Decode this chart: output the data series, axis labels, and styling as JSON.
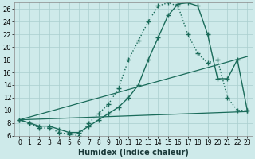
{
  "xlabel": "Humidex (Indice chaleur)",
  "background_color": "#ceeaea",
  "line_color": "#1a6b5a",
  "grid_color": "#aacece",
  "xlim": [
    -0.5,
    23.5
  ],
  "ylim": [
    6,
    27
  ],
  "xticks": [
    0,
    1,
    2,
    3,
    4,
    5,
    6,
    7,
    8,
    9,
    10,
    11,
    12,
    13,
    14,
    15,
    16,
    17,
    18,
    19,
    20,
    21,
    22,
    23
  ],
  "yticks": [
    6,
    8,
    10,
    12,
    14,
    16,
    18,
    20,
    22,
    24,
    26
  ],
  "series": [
    {
      "x": [
        0,
        1,
        2,
        3,
        4,
        5,
        6,
        7,
        8,
        9,
        10,
        11,
        12,
        13,
        14,
        15,
        16,
        17,
        18,
        19,
        20,
        21,
        22,
        23
      ],
      "y": [
        8.5,
        8.0,
        7.2,
        7.2,
        6.5,
        6.2,
        6.0,
        8.0,
        9.5,
        11.0,
        13.5,
        18.0,
        21.0,
        24.0,
        26.5,
        27.0,
        26.5,
        22.0,
        19.0,
        17.5,
        18.0,
        12.0,
        10.0,
        10.0
      ],
      "marker": "+",
      "markersize": 4,
      "linewidth": 1.0,
      "linestyle": ":"
    },
    {
      "x": [
        0,
        1,
        2,
        3,
        4,
        5,
        6,
        7,
        8,
        9,
        10,
        11,
        12,
        13,
        14,
        15,
        16,
        17,
        18,
        19,
        20,
        21,
        22,
        23
      ],
      "y": [
        8.5,
        8.0,
        7.5,
        7.5,
        7.0,
        6.5,
        6.5,
        7.5,
        8.5,
        9.5,
        10.5,
        12.0,
        14.0,
        18.0,
        21.5,
        25.0,
        26.8,
        27.0,
        26.5,
        22.0,
        15.0,
        15.0,
        18.0,
        10.0
      ],
      "marker": "+",
      "markersize": 4,
      "linewidth": 1.0,
      "linestyle": "-"
    },
    {
      "x": [
        0,
        23
      ],
      "y": [
        8.5,
        18.5
      ],
      "marker": null,
      "linewidth": 0.9,
      "linestyle": "-"
    },
    {
      "x": [
        0,
        23
      ],
      "y": [
        8.5,
        9.8
      ],
      "marker": null,
      "linewidth": 0.9,
      "linestyle": "-"
    }
  ]
}
